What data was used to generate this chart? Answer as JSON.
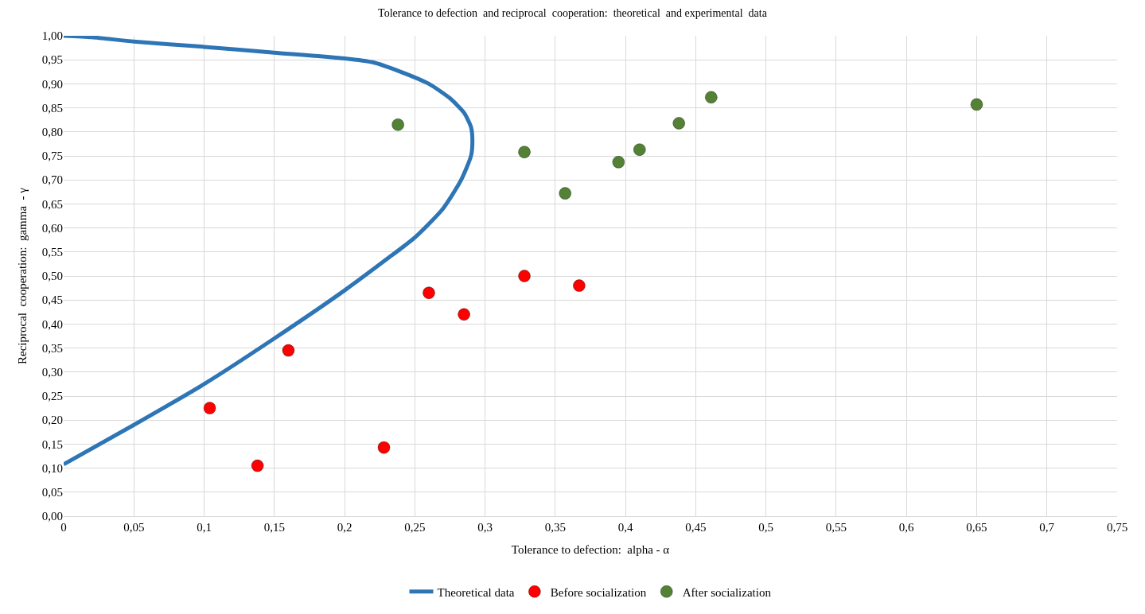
{
  "chart_data": {
    "type": "scatter",
    "title": "Tolerance to defection  and reciprocal  cooperation:  theoretical  and experimental  data",
    "xlabel": "Tolerance to defection:  alpha - α",
    "ylabel": "Reciprocal  cooperation:  gamma  - γ",
    "xlim": [
      0,
      0.75
    ],
    "ylim": [
      0,
      1
    ],
    "xticks": [
      0,
      {
        "value": 0.05,
        "label": "0,05"
      },
      {
        "value": 0.1,
        "label": "0,1"
      },
      {
        "value": 0.15,
        "label": "0,15"
      },
      {
        "value": 0.2,
        "label": "0,2"
      },
      {
        "value": 0.25,
        "label": "0,25"
      },
      {
        "value": 0.3,
        "label": "0,3"
      },
      {
        "value": 0.35,
        "label": "0,35"
      },
      {
        "value": 0.4,
        "label": "0,4"
      },
      {
        "value": 0.45,
        "label": "0,45"
      },
      {
        "value": 0.5,
        "label": "0,5"
      },
      {
        "value": 0.55,
        "label": "0,55"
      },
      {
        "value": 0.6,
        "label": "0,6"
      },
      {
        "value": 0.65,
        "label": "0,65"
      },
      {
        "value": 0.7,
        "label": "0,7"
      },
      {
        "value": 0.75,
        "label": "0,75"
      }
    ],
    "yticks": [
      {
        "value": 0,
        "label": "0,00"
      },
      {
        "value": 0.05,
        "label": "0,05"
      },
      {
        "value": 0.1,
        "label": "0,10"
      },
      {
        "value": 0.15,
        "label": "0,15"
      },
      {
        "value": 0.2,
        "label": "0,20"
      },
      {
        "value": 0.25,
        "label": "0,25"
      },
      {
        "value": 0.3,
        "label": "0,30"
      },
      {
        "value": 0.35,
        "label": "0,35"
      },
      {
        "value": 0.4,
        "label": "0,40"
      },
      {
        "value": 0.45,
        "label": "0,45"
      },
      {
        "value": 0.5,
        "label": "0,50"
      },
      {
        "value": 0.55,
        "label": "0,55"
      },
      {
        "value": 0.6,
        "label": "0,60"
      },
      {
        "value": 0.65,
        "label": "0,65"
      },
      {
        "value": 0.7,
        "label": "0,70"
      },
      {
        "value": 0.75,
        "label": "0,75"
      },
      {
        "value": 0.8,
        "label": "0,80"
      },
      {
        "value": 0.85,
        "label": "0,85"
      },
      {
        "value": 0.9,
        "label": "0,90"
      },
      {
        "value": 0.95,
        "label": "0,95"
      },
      {
        "value": 1,
        "label": "1,00"
      }
    ],
    "grid": true,
    "legend": "bottom",
    "marker": "circle",
    "series": [
      {
        "name": "Theoretical data",
        "type": "line",
        "marker": "none",
        "color": "#2e75b6",
        "x": [
          0,
          0.05,
          0.1,
          0.15,
          0.2,
          0.23,
          0.25,
          0.27,
          0.283,
          0.29,
          0.291,
          0.29,
          0.285,
          0.275,
          0.26,
          0.24,
          0.22,
          0.2,
          0.15,
          0.1,
          0.05,
          0.02,
          0
        ],
        "values": [
          0.108,
          0.19,
          0.275,
          0.37,
          0.47,
          0.535,
          0.58,
          0.64,
          0.7,
          0.75,
          0.78,
          0.81,
          0.84,
          0.87,
          0.9,
          0.925,
          0.945,
          0.953,
          0.965,
          0.977,
          0.988,
          0.997,
          1.0
        ]
      },
      {
        "name": "Before socialization",
        "color": "#ff0000",
        "x": [
          0.104,
          0.138,
          0.16,
          0.228,
          0.26,
          0.285,
          0.328,
          0.367
        ],
        "values": [
          0.225,
          0.105,
          0.345,
          0.143,
          0.465,
          0.42,
          0.5,
          0.48
        ]
      },
      {
        "name": "After socialization",
        "color": "#548235",
        "x": [
          0.238,
          0.328,
          0.357,
          0.395,
          0.41,
          0.438,
          0.461,
          0.65
        ],
        "values": [
          0.815,
          0.758,
          0.672,
          0.737,
          0.763,
          0.818,
          0.872,
          0.857
        ]
      }
    ]
  }
}
